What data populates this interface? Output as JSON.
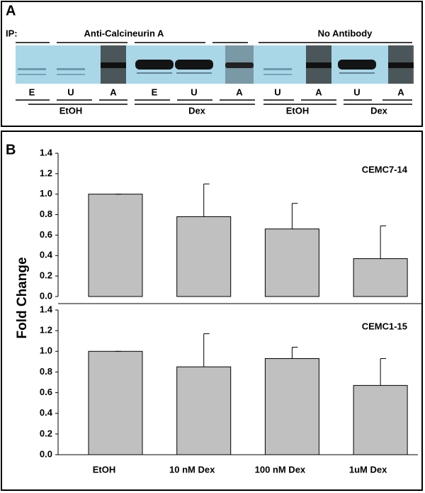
{
  "panel_a": {
    "label": "A",
    "ip_label": "IP:",
    "groups": [
      "Anti-Calcineurin A",
      "No Antibody"
    ],
    "lanes": [
      "E",
      "U",
      "A",
      "E",
      "U",
      "A",
      "U",
      "A",
      "U",
      "A"
    ],
    "conditions": [
      "EtOH",
      "Dex",
      "EtOH",
      "Dex"
    ]
  },
  "panel_b": {
    "label": "B",
    "y_label": "Fold Change"
  },
  "chart_data": [
    {
      "type": "bar",
      "annotation": "CEMC7-14",
      "values": [
        1.0,
        0.78,
        0.66,
        0.37
      ],
      "errors": [
        0,
        0.32,
        0.25,
        0.32
      ],
      "color": "#c0c0c0",
      "ylim": [
        0,
        1.4
      ],
      "yticks": [
        {
          "value": 0,
          "label": "0.0"
        },
        {
          "value": 0.2,
          "label": "0.2"
        },
        {
          "value": 0.4,
          "label": "0.4"
        },
        {
          "value": 0.6,
          "label": "0.6"
        },
        {
          "value": 0.8,
          "label": "0.8"
        },
        {
          "value": 1.0,
          "label": "1.0"
        },
        {
          "value": 1.2,
          "label": "1.2"
        },
        {
          "value": 1.4,
          "label": "1.4"
        }
      ]
    },
    {
      "type": "bar",
      "annotation": "CEMC1-15",
      "categories": [
        "EtOH",
        "10 nM Dex",
        "100 nM Dex",
        "1uM Dex"
      ],
      "values": [
        1.0,
        0.85,
        0.93,
        0.67
      ],
      "errors": [
        0,
        0.32,
        0.11,
        0.26
      ],
      "color": "#c0c0c0",
      "ylim": [
        0,
        1.4
      ],
      "yticks": [
        {
          "value": 0,
          "label": "0.0"
        },
        {
          "value": 0.2,
          "label": "0.2"
        },
        {
          "value": 0.4,
          "label": "0.4"
        },
        {
          "value": 0.6,
          "label": "0.6"
        },
        {
          "value": 0.8,
          "label": "0.8"
        },
        {
          "value": 1.0,
          "label": "1.0"
        },
        {
          "value": 1.2,
          "label": "1.2"
        },
        {
          "value": 1.4,
          "label": "1.4"
        }
      ]
    }
  ]
}
